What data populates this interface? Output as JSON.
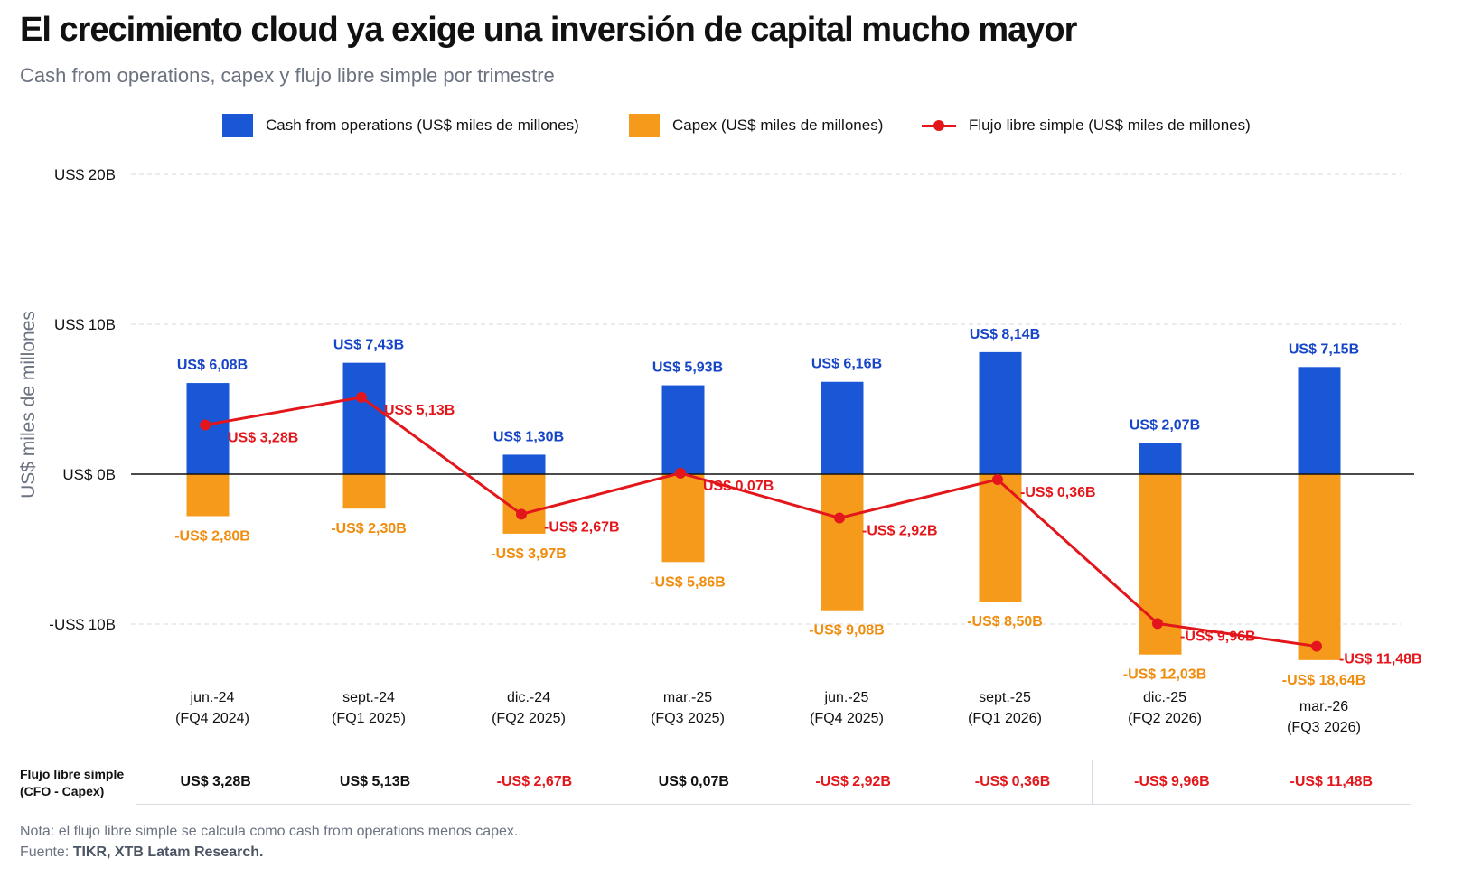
{
  "title": "El crecimiento cloud ya exige una inversión de capital mucho mayor",
  "subtitle": "Cash from operations, capex y flujo libre simple por trimestre",
  "legend": {
    "cfo": "Cash from operations (US$ miles de millones)",
    "capex": "Capex (US$ miles de millones)",
    "fcf": "Flujo libre simple (US$ miles de millones)"
  },
  "colors": {
    "cfo": "#1957d6",
    "capex": "#f59a1b",
    "fcf": "#e3171b",
    "cfo_label": "#1745c8",
    "capex_label": "#f08c0e"
  },
  "chart_data": {
    "type": "bar",
    "ylabel": "US$ miles de millones",
    "ylim": [
      -14,
      21
    ],
    "yticks": [
      {
        "value": 20,
        "label": "US$ 20B"
      },
      {
        "value": 10,
        "label": "US$ 10B"
      },
      {
        "value": 0,
        "label": "US$ 0B"
      },
      {
        "value": -10,
        "label": "-US$ 10B"
      }
    ],
    "grid": true,
    "legend_position": "top",
    "categories": [
      {
        "line1": "jun.-24",
        "line2": "(FQ4 2024)"
      },
      {
        "line1": "sept.-24",
        "line2": "(FQ1 2025)"
      },
      {
        "line1": "dic.-24",
        "line2": "(FQ2 2025)"
      },
      {
        "line1": "mar.-25",
        "line2": "(FQ3 2025)"
      },
      {
        "line1": "jun.-25",
        "line2": "(FQ4 2025)"
      },
      {
        "line1": "sept.-25",
        "line2": "(FQ1 2026)"
      },
      {
        "line1": "dic.-25",
        "line2": "(FQ2 2026)"
      },
      {
        "line1": "mar.-26",
        "line2": "(FQ3 2026)"
      }
    ],
    "series": [
      {
        "name": "Cash from operations (US$ miles de millones)",
        "type": "bar",
        "values": [
          6.08,
          7.43,
          1.3,
          5.93,
          6.16,
          8.14,
          2.07,
          7.15
        ],
        "labels": [
          "US$ 6,08B",
          "US$ 7,43B",
          "US$ 1,30B",
          "US$ 5,93B",
          "US$ 6,16B",
          "US$ 8,14B",
          "US$ 2,07B",
          "US$ 7,15B"
        ]
      },
      {
        "name": "Capex (US$ miles de millones)",
        "type": "bar",
        "values": [
          -2.8,
          -2.3,
          -3.97,
          -5.86,
          -9.08,
          -8.5,
          -12.03,
          -18.64
        ],
        "labels": [
          "-US$ 2,80B",
          "-US$ 2,30B",
          "-US$ 3,97B",
          "-US$ 5,86B",
          "-US$ 9,08B",
          "-US$ 8,50B",
          "-US$ 12,03B",
          "-US$ 18,64B"
        ]
      },
      {
        "name": "Flujo libre simple (US$ miles de millones)",
        "type": "line",
        "values": [
          3.28,
          5.13,
          -2.67,
          0.07,
          -2.92,
          -0.36,
          -9.96,
          -11.48
        ],
        "labels": [
          "US$ 3,28B",
          "US$ 5,13B",
          "-US$ 2,67B",
          "US$ 0,07B",
          "-US$ 2,92B",
          "-US$ 0,36B",
          "-US$ 9,96B",
          "-US$ 11,48B"
        ]
      }
    ]
  },
  "table": {
    "row_label_line1": "Flujo libre simple",
    "row_label_line2": "(CFO - Capex)",
    "cells": [
      "US$ 3,28B",
      "US$ 5,13B",
      "-US$ 2,67B",
      "US$ 0,07B",
      "-US$ 2,92B",
      "-US$ 0,36B",
      "-US$ 9,96B",
      "-US$ 11,48B"
    ]
  },
  "note": "Nota: el flujo libre simple se calcula como cash from operations menos capex.",
  "source_prefix": "Fuente: ",
  "source_text": "TIKR, XTB Latam Research."
}
